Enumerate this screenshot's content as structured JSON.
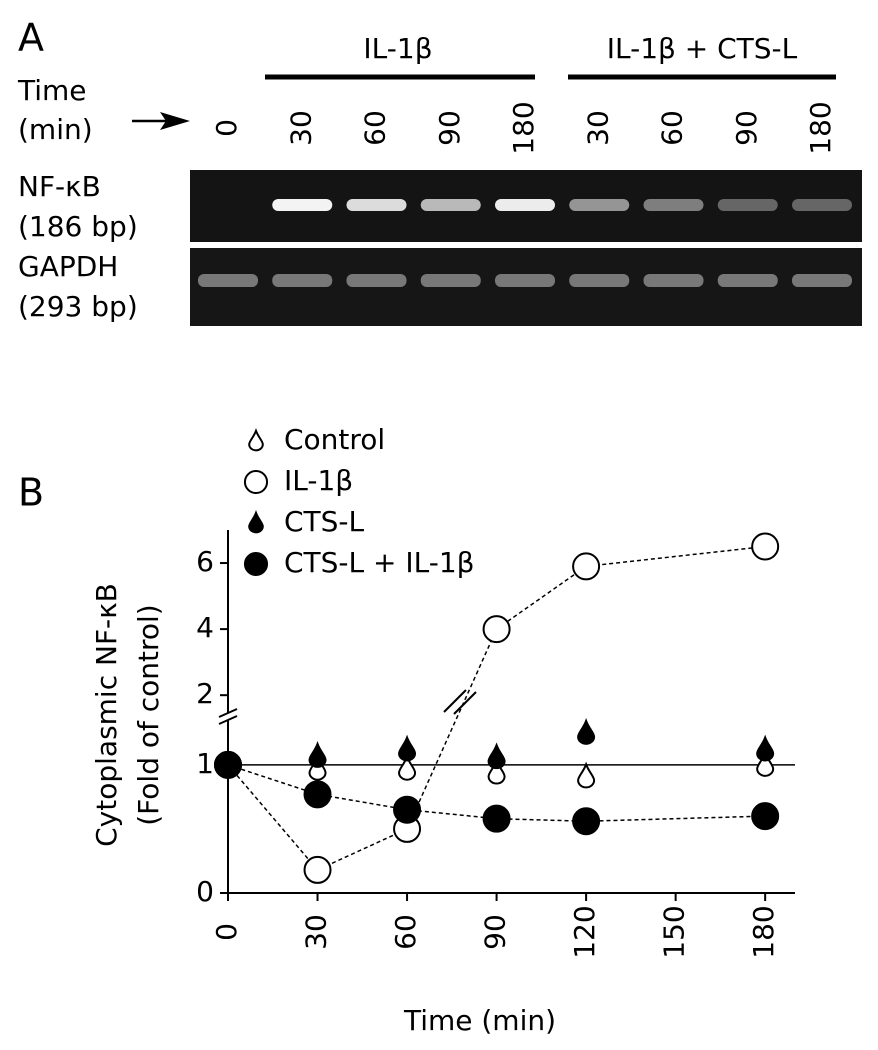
{
  "panel_a": {
    "label": "A",
    "groups": [
      "IL-1β",
      "IL-1β + CTS-L"
    ],
    "time_label": [
      "Time",
      "(min)"
    ],
    "lanes": [
      "0",
      "30",
      "60",
      "90",
      "180",
      "30",
      "60",
      "90",
      "180"
    ],
    "rows": [
      {
        "name": "NF-κB",
        "size": "(186 bp)"
      },
      {
        "name": "GAPDH",
        "size": "(293 bp)"
      }
    ]
  },
  "chart_data": {
    "type": "line",
    "panel_label": "B",
    "ylabel": [
      "Cytoplasmic NF-κB",
      "(Fold of control)"
    ],
    "xlabel": "Time (min)",
    "x": [
      0,
      30,
      60,
      90,
      120,
      180
    ],
    "series": [
      {
        "name": "Control",
        "color": "#000000",
        "marker": "teardrop",
        "filled": false,
        "line": "none",
        "values": [
          1,
          0.97,
          0.97,
          0.94,
          0.91,
          1.0
        ]
      },
      {
        "name": "IL-1β",
        "color": "#000000",
        "marker": "circle",
        "filled": false,
        "line": "dashed",
        "values": [
          1,
          0.18,
          0.5,
          4.0,
          5.9,
          6.5
        ]
      },
      {
        "name": "CTS-L",
        "color": "#000000",
        "marker": "teardrop",
        "filled": true,
        "line": "none",
        "values": [
          1,
          1.07,
          1.12,
          1.06,
          1.25,
          1.12
        ]
      },
      {
        "name": "CTS-L + IL-1β",
        "color": "#000000",
        "marker": "circle",
        "filled": true,
        "line": "dashed",
        "values": [
          1,
          0.77,
          0.65,
          0.58,
          0.56,
          0.6
        ]
      }
    ],
    "xlim": [
      0,
      190
    ],
    "xticks": [
      0,
      30,
      60,
      90,
      120,
      150,
      180
    ],
    "ylim": [
      0,
      7
    ],
    "y_break": [
      1.35,
      1.4
    ],
    "yticks": [
      0,
      1,
      2,
      4,
      6
    ],
    "reference_line": 1
  }
}
